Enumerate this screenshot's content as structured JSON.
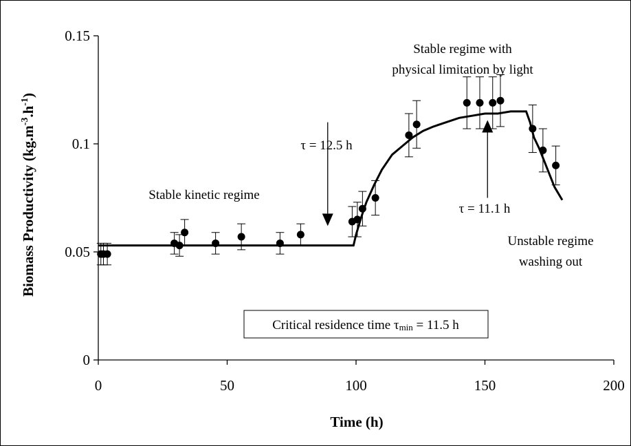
{
  "chart_data": {
    "type": "scatter",
    "title": "",
    "xlabel": "Time (h)",
    "ylabel": {
      "base": "Biomass Productivity (kg.m",
      "sup1": "-3",
      "mid": ".h",
      "sup2": "-1",
      "end": ")"
    },
    "xlim": [
      0,
      200
    ],
    "ylim": [
      0,
      0.15
    ],
    "xticks": [
      0,
      50,
      100,
      150,
      200
    ],
    "yticks": [
      0,
      0.05,
      0.1,
      0.15
    ],
    "xtick_labels": [
      "0",
      "50",
      "100",
      "150",
      "200"
    ],
    "ytick_labels": [
      "0",
      "0.05",
      "0.1",
      "0.15"
    ],
    "grid": false,
    "legend": "none",
    "series": [
      {
        "style": "markers with error bars",
        "x": [
          1,
          2,
          3.5,
          29.5,
          31.5,
          33.5,
          45.5,
          55.5,
          70.5,
          78.5,
          98.5,
          100.5,
          102.5,
          107.5,
          120.5,
          123.5,
          143,
          148,
          153,
          156,
          168.5,
          172.5,
          177.5
        ],
        "y": [
          0.049,
          0.049,
          0.049,
          0.054,
          0.053,
          0.059,
          0.054,
          0.057,
          0.054,
          0.058,
          0.064,
          0.065,
          0.07,
          0.075,
          0.104,
          0.109,
          0.119,
          0.119,
          0.119,
          0.12,
          0.107,
          0.097,
          0.09
        ],
        "error": [
          0.005,
          0.005,
          0.005,
          0.005,
          0.005,
          0.006,
          0.005,
          0.006,
          0.005,
          0.005,
          0.007,
          0.008,
          0.008,
          0.008,
          0.01,
          0.011,
          0.012,
          0.012,
          0.012,
          0.012,
          0.011,
          0.01,
          0.009
        ]
      },
      {
        "style": "line",
        "x": [
          0,
          99,
          100,
          102,
          104,
          107,
          110,
          114,
          118,
          122,
          126,
          130,
          135,
          140,
          145,
          150,
          155,
          160,
          166,
          167.5,
          169,
          171,
          173,
          175,
          177,
          180
        ],
        "y": [
          0.053,
          0.053,
          0.058,
          0.066,
          0.073,
          0.081,
          0.088,
          0.095,
          0.099,
          0.103,
          0.106,
          0.108,
          0.11,
          0.112,
          0.113,
          0.114,
          0.114,
          0.115,
          0.115,
          0.11,
          0.103,
          0.098,
          0.092,
          0.086,
          0.08,
          0.074
        ]
      }
    ],
    "annotations": {
      "stable_kinetic": "Stable kinetic regime",
      "stable_limited_line1": "Stable regime with",
      "stable_limited_line2": "physical limitation by light",
      "tau1_text": "τ = 12.5 h",
      "tau2_text": "τ = 11.1 h",
      "unstable_line1": "Unstable regime",
      "unstable_line2": "washing out",
      "critical_prefix": "Critical residence time τ",
      "critical_sub": "min",
      "critical_suffix": " = 11.5 h"
    },
    "arrows": [
      {
        "label": "τ = 12.5 h",
        "x": 89,
        "y_from": 0.11,
        "y_to": 0.062,
        "direction": "down"
      },
      {
        "label": "τ = 11.1 h",
        "x": 151,
        "y_from": 0.075,
        "y_to": 0.111,
        "direction": "up"
      }
    ]
  }
}
